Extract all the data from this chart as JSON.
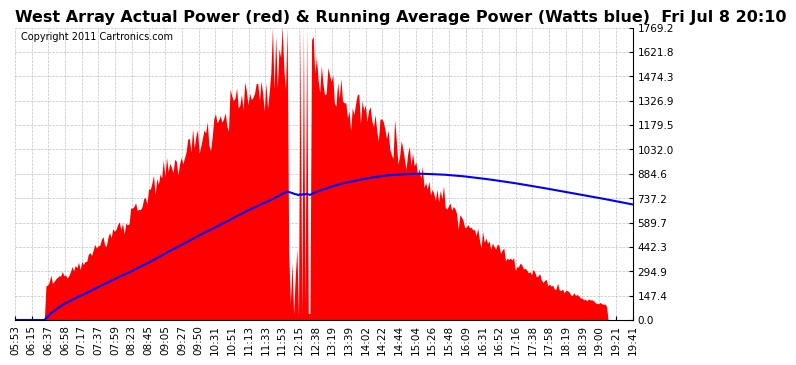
{
  "title": "West Array Actual Power (red) & Running Average Power (Watts blue)  Fri Jul 8 20:10",
  "copyright": "Copyright 2011 Cartronics.com",
  "background_color": "#ffffff",
  "grid_color": "#cccccc",
  "ymin": 0.0,
  "ymax": 1769.2,
  "yticks": [
    0.0,
    147.4,
    294.9,
    442.3,
    589.7,
    737.2,
    884.6,
    1032.0,
    1179.5,
    1326.9,
    1474.3,
    1621.8,
    1769.2
  ],
  "xtick_labels": [
    "05:53",
    "06:15",
    "06:37",
    "06:58",
    "07:17",
    "07:37",
    "07:59",
    "08:23",
    "08:45",
    "09:05",
    "09:27",
    "09:50",
    "10:31",
    "10:51",
    "11:13",
    "11:33",
    "11:53",
    "12:15",
    "12:38",
    "13:19",
    "13:39",
    "14:02",
    "14:22",
    "14:44",
    "15:04",
    "15:26",
    "15:48",
    "16:09",
    "16:31",
    "16:52",
    "17:16",
    "17:38",
    "17:58",
    "18:19",
    "18:39",
    "19:00",
    "19:21",
    "19:41"
  ],
  "n_points": 380,
  "actual_color": "#ff0000",
  "avg_color": "#0000ff",
  "title_fontsize": 11.5,
  "tick_fontsize": 7.5,
  "copyright_fontsize": 7
}
